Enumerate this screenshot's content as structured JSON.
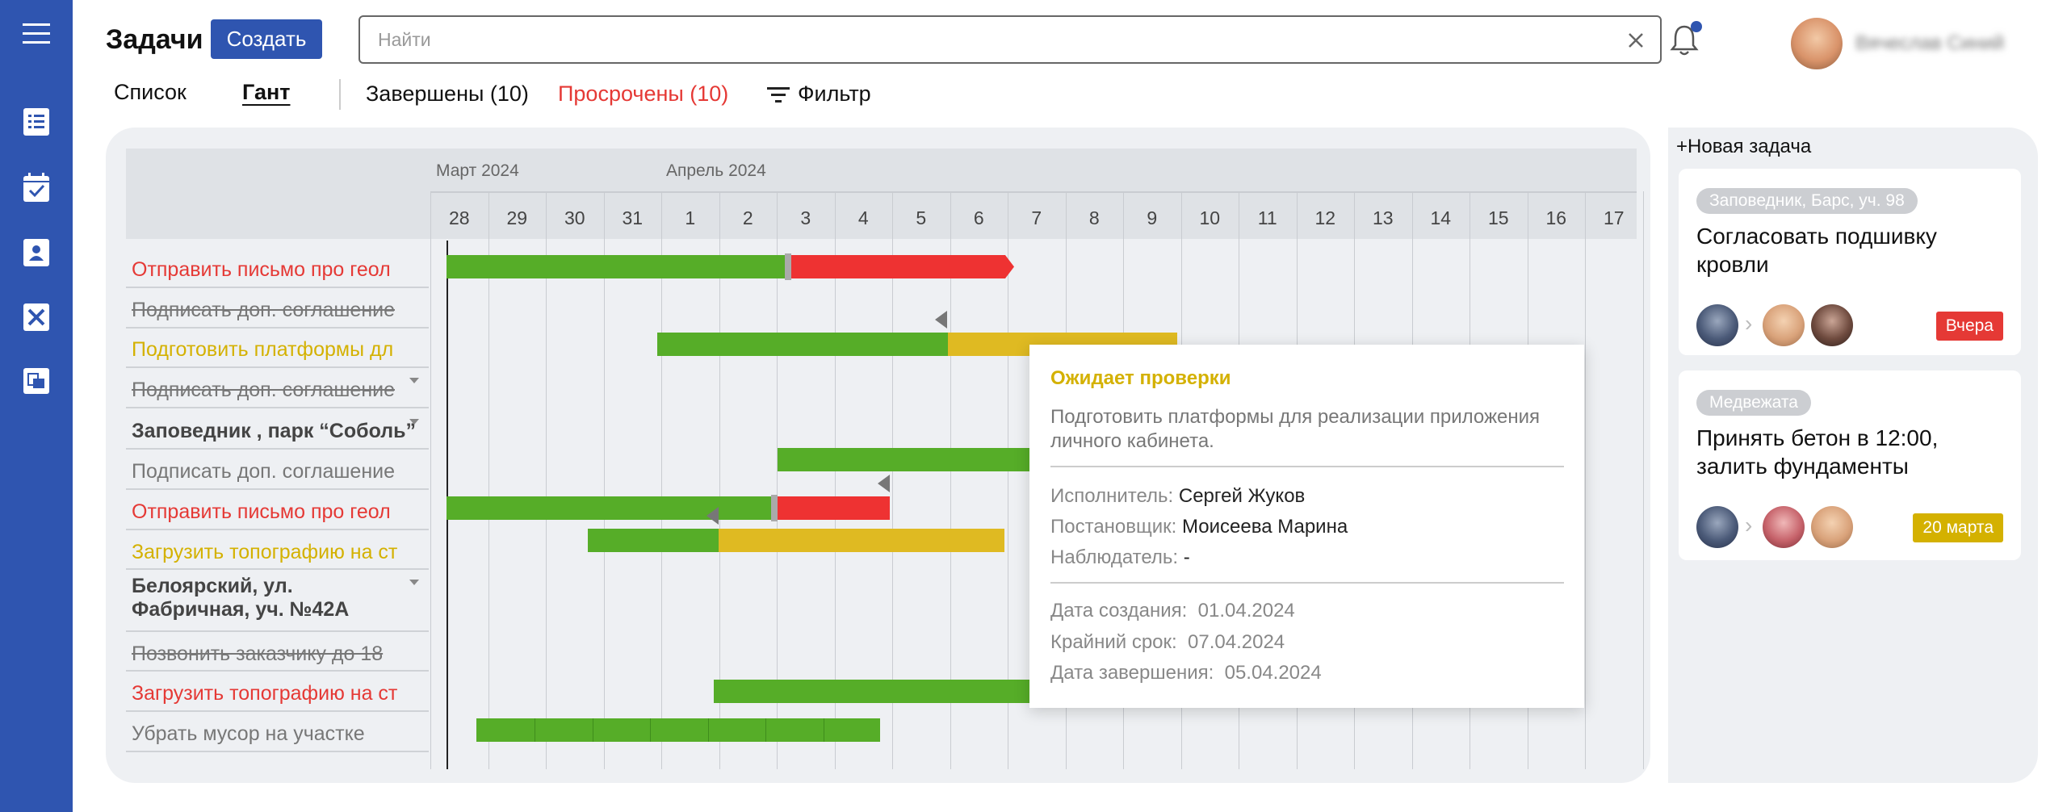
{
  "header": {
    "title": "Задачи",
    "create_label": "Создать",
    "search_placeholder": "Найти",
    "user_name": "Вячеслав Синий"
  },
  "views": {
    "list": "Список",
    "gantt": "Гант"
  },
  "filters": {
    "completed": "Завершены (10)",
    "overdue": "Просрочены (10)",
    "filter": "Фильтр"
  },
  "gantt": {
    "months": [
      "Март 2024",
      "Апрель 2024"
    ],
    "days": [
      "28",
      "29",
      "30",
      "31",
      "1",
      "2",
      "3",
      "4",
      "5",
      "6",
      "7",
      "8",
      "9",
      "10",
      "11",
      "12",
      "13",
      "14",
      "15",
      "16",
      "17"
    ],
    "rows": [
      {
        "label": "Отправить письмо про геол",
        "color": "#e53935",
        "struck": false,
        "group": false
      },
      {
        "label": "Подписать доп. соглашение",
        "color": "#777777",
        "struck": true,
        "group": false
      },
      {
        "label": "Подготовить платформы дл",
        "color": "#d4b100",
        "struck": false,
        "group": false
      },
      {
        "label": "Подписать доп. соглашение",
        "color": "#777777",
        "struck": true,
        "group": false
      },
      {
        "label": "Заповедник , парк “Соболь”",
        "color": "#444444",
        "struck": false,
        "group": true
      },
      {
        "label": "Подписать доп. соглашение",
        "color": "#777777",
        "struck": false,
        "group": false
      },
      {
        "label": "Отправить письмо про геол",
        "color": "#e53935",
        "struck": false,
        "group": false
      },
      {
        "label": "Загрузить топографию на ст",
        "color": "#d4b100",
        "struck": false,
        "group": false
      },
      {
        "label": "Белоярский, ул. Фабричная, уч. №42А",
        "color": "#444444",
        "struck": false,
        "group": true
      },
      {
        "label": "Позвонить заказчику до 18",
        "color": "#777777",
        "struck": true,
        "group": false
      },
      {
        "label": "Загрузить топографию на ст",
        "color": "#e53935",
        "struck": false,
        "group": false
      },
      {
        "label": "Убрать мусор на участке",
        "color": "#777777",
        "struck": false,
        "group": false
      }
    ]
  },
  "tooltip": {
    "status": "Ожидает проверки",
    "description": "Подготовить платформы для реализации приложения личного кабинета.",
    "assignee_label": "Исполнитель:",
    "assignee": "Сергей Жуков",
    "author_label": "Постановщик:",
    "author": "Моисеева Марина",
    "observer_label": "Наблюдатель:",
    "observer": "-",
    "created_label": "Дата создания:",
    "created": "01.04.2024",
    "deadline_label": "Крайний срок:",
    "deadline": "07.04.2024",
    "completed_label": "Дата завершения:",
    "completed": "05.04.2024"
  },
  "side": {
    "new_task": "+Новая задача",
    "cards": [
      {
        "tag": "Заповедник, Барс, уч. 98",
        "title": "Согласовать подшивку кровли",
        "badge": "Вчера",
        "badge_color": "#e53935"
      },
      {
        "tag": "Медвежата",
        "title": "Принять бетон в 12:00, залить фундаменты",
        "badge": "20 марта",
        "badge_color": "#d4b100"
      }
    ]
  },
  "colors": {
    "brand": "#2f55b0",
    "done": "#56ad28",
    "overdue": "#ee3232",
    "review": "#dfba22"
  }
}
